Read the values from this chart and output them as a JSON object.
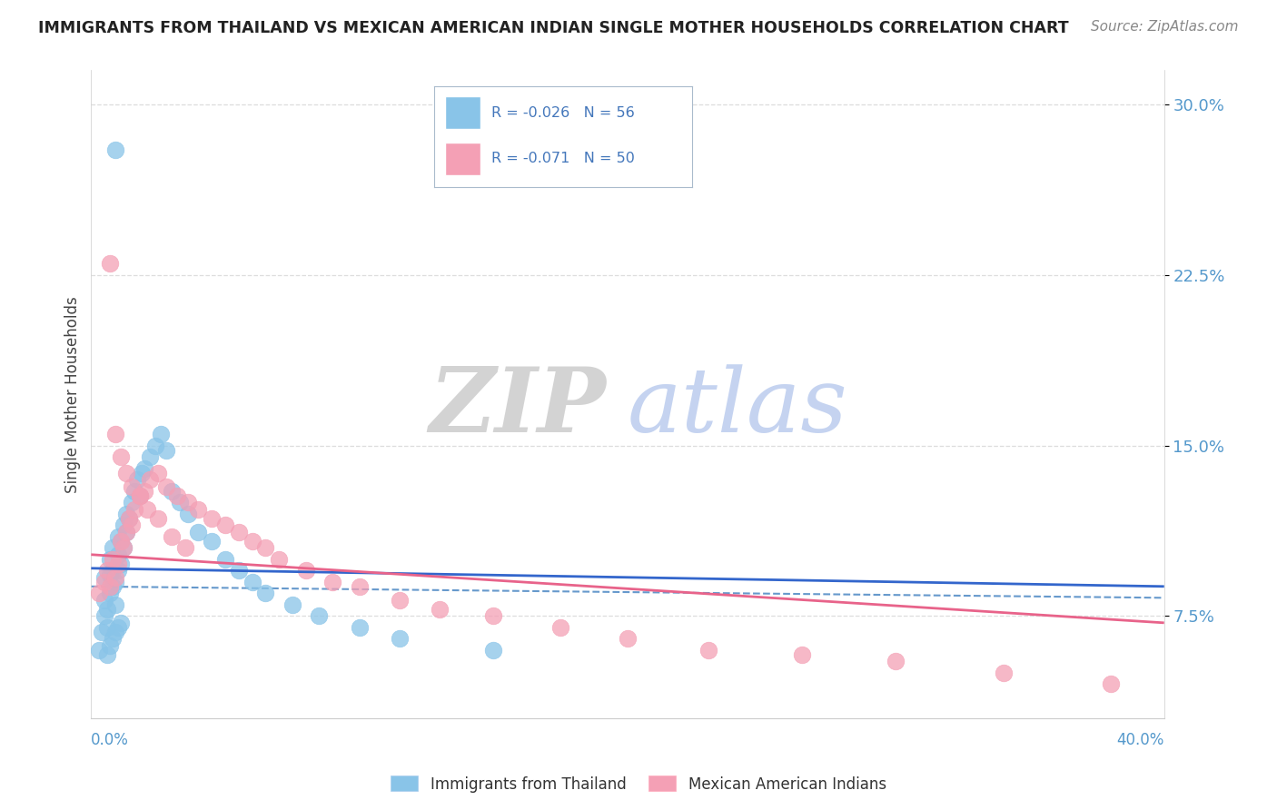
{
  "title": "IMMIGRANTS FROM THAILAND VS MEXICAN AMERICAN INDIAN SINGLE MOTHER HOUSEHOLDS CORRELATION CHART",
  "source": "Source: ZipAtlas.com",
  "ylabel": "Single Mother Households",
  "xlim": [
    0.0,
    0.4
  ],
  "ylim": [
    0.03,
    0.315
  ],
  "yticks": [
    0.075,
    0.15,
    0.225,
    0.3
  ],
  "ytick_labels": [
    "7.5%",
    "15.0%",
    "22.5%",
    "30.0%"
  ],
  "series1_label": "Immigrants from Thailand",
  "series2_label": "Mexican American Indians",
  "color1": "#89C4E8",
  "color2": "#F4A0B5",
  "trendline1_color": "#3366CC",
  "trendline2_color": "#E8638A",
  "trendline1_dashed_color": "#6699CC",
  "watermark_zip": "ZIP",
  "watermark_atlas": "atlas",
  "background_color": "#FFFFFF",
  "grid_color": "#DDDDDD",
  "legend_text_color": "#4477BB",
  "scatter1_x": [
    0.003,
    0.004,
    0.005,
    0.005,
    0.005,
    0.006,
    0.006,
    0.007,
    0.007,
    0.007,
    0.008,
    0.008,
    0.008,
    0.009,
    0.009,
    0.01,
    0.01,
    0.01,
    0.011,
    0.011,
    0.012,
    0.012,
    0.013,
    0.013,
    0.014,
    0.015,
    0.016,
    0.017,
    0.018,
    0.019,
    0.02,
    0.022,
    0.024,
    0.026,
    0.028,
    0.03,
    0.033,
    0.036,
    0.04,
    0.045,
    0.05,
    0.055,
    0.06,
    0.065,
    0.075,
    0.085,
    0.1,
    0.115,
    0.15,
    0.009,
    0.006,
    0.007,
    0.008,
    0.009,
    0.01,
    0.011
  ],
  "scatter1_y": [
    0.06,
    0.068,
    0.075,
    0.082,
    0.092,
    0.07,
    0.078,
    0.085,
    0.093,
    0.1,
    0.088,
    0.095,
    0.105,
    0.08,
    0.09,
    0.095,
    0.102,
    0.11,
    0.098,
    0.108,
    0.105,
    0.115,
    0.112,
    0.12,
    0.118,
    0.125,
    0.13,
    0.135,
    0.128,
    0.138,
    0.14,
    0.145,
    0.15,
    0.155,
    0.148,
    0.13,
    0.125,
    0.12,
    0.112,
    0.108,
    0.1,
    0.095,
    0.09,
    0.085,
    0.08,
    0.075,
    0.07,
    0.065,
    0.06,
    0.28,
    0.058,
    0.062,
    0.065,
    0.068,
    0.07,
    0.072
  ],
  "scatter2_x": [
    0.003,
    0.005,
    0.006,
    0.007,
    0.008,
    0.009,
    0.01,
    0.011,
    0.012,
    0.013,
    0.014,
    0.015,
    0.016,
    0.018,
    0.02,
    0.022,
    0.025,
    0.028,
    0.032,
    0.036,
    0.04,
    0.045,
    0.05,
    0.055,
    0.06,
    0.065,
    0.07,
    0.08,
    0.09,
    0.1,
    0.115,
    0.13,
    0.15,
    0.175,
    0.2,
    0.23,
    0.265,
    0.3,
    0.34,
    0.38,
    0.007,
    0.009,
    0.011,
    0.013,
    0.015,
    0.018,
    0.021,
    0.025,
    0.03,
    0.035
  ],
  "scatter2_y": [
    0.085,
    0.09,
    0.095,
    0.088,
    0.1,
    0.092,
    0.098,
    0.108,
    0.105,
    0.112,
    0.118,
    0.115,
    0.122,
    0.128,
    0.13,
    0.135,
    0.138,
    0.132,
    0.128,
    0.125,
    0.122,
    0.118,
    0.115,
    0.112,
    0.108,
    0.105,
    0.1,
    0.095,
    0.09,
    0.088,
    0.082,
    0.078,
    0.075,
    0.07,
    0.065,
    0.06,
    0.058,
    0.055,
    0.05,
    0.045,
    0.23,
    0.155,
    0.145,
    0.138,
    0.132,
    0.128,
    0.122,
    0.118,
    0.11,
    0.105
  ],
  "trend1_x0": 0.0,
  "trend1_x1": 0.4,
  "trend1_y0": 0.096,
  "trend1_y1": 0.088,
  "trend2_x0": 0.0,
  "trend2_x1": 0.4,
  "trend2_y0": 0.102,
  "trend2_y1": 0.072
}
